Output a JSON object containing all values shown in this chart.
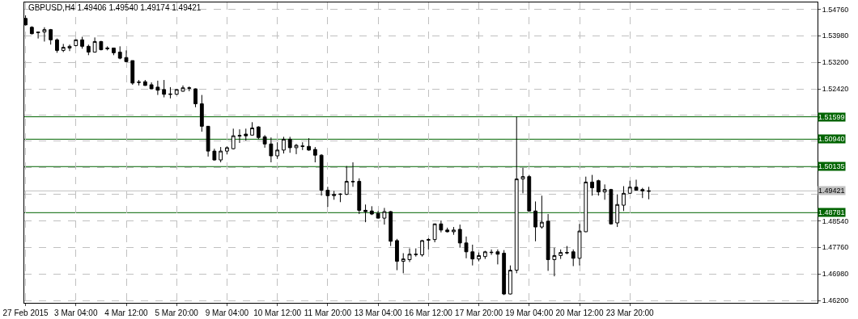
{
  "chart_data": {
    "type": "candlestick",
    "title": "GBPUSD,H4 1.49406 1.49540 1.49174 1.49421",
    "categories": [
      "27 Feb 2015",
      null,
      null,
      null,
      null,
      null,
      null,
      null,
      "3 Mar 04:00",
      null,
      null,
      null,
      null,
      null,
      null,
      null,
      "4 Mar 12:00",
      null,
      null,
      null,
      null,
      null,
      null,
      null,
      "5 Mar 20:00",
      null,
      null,
      null,
      null,
      null,
      null,
      null,
      "9 Mar 04:00",
      null,
      null,
      null,
      null,
      null,
      null,
      null,
      "10 Mar 12:00",
      null,
      null,
      null,
      null,
      null,
      null,
      null,
      "11 Mar 20:00",
      null,
      null,
      null,
      null,
      null,
      null,
      null,
      "13 Mar 04:00",
      null,
      null,
      null,
      null,
      null,
      null,
      null,
      "16 Mar 12:00",
      null,
      null,
      null,
      null,
      null,
      null,
      null,
      "17 Mar 20:00",
      null,
      null,
      null,
      null,
      null,
      null,
      null,
      "19 Mar 04:00",
      null,
      null,
      null,
      null,
      null,
      null,
      null,
      "20 Mar 12:00",
      null,
      null,
      null,
      null,
      null,
      null,
      null,
      "23 Mar 20:00",
      null,
      null,
      null,
      null,
      null,
      null,
      null,
      null,
      null,
      null,
      null,
      null,
      null,
      null,
      null,
      null,
      null,
      null,
      null,
      null,
      null,
      null,
      null,
      null,
      null,
      null,
      null,
      null,
      null
    ],
    "ohlc": [
      [
        1.5449,
        1.5458,
        1.5428,
        1.543
      ],
      [
        1.5423,
        1.5426,
        1.5402,
        1.5404
      ],
      [
        1.5409,
        1.5409,
        1.539,
        1.5407
      ],
      [
        1.5409,
        1.5423,
        1.5381,
        1.5416
      ],
      [
        1.5416,
        1.5418,
        1.5372,
        1.5386
      ],
      [
        1.5386,
        1.539,
        1.5348,
        1.5355
      ],
      [
        1.5355,
        1.5374,
        1.535,
        1.5364
      ],
      [
        1.5362,
        1.5372,
        1.5353,
        1.5367
      ],
      [
        1.5369,
        1.5388,
        1.5367,
        1.5386
      ],
      [
        1.5386,
        1.5395,
        1.536,
        1.5367
      ],
      [
        1.5367,
        1.5372,
        1.5341,
        1.535
      ],
      [
        1.535,
        1.5393,
        1.5349,
        1.5381
      ],
      [
        1.5381,
        1.5383,
        1.5355,
        1.5357
      ],
      [
        1.5362,
        1.5367,
        1.5355,
        1.536
      ],
      [
        1.5362,
        1.5363,
        1.5341,
        1.5348
      ],
      [
        1.535,
        1.5367,
        1.5329,
        1.5332
      ],
      [
        1.5334,
        1.5355,
        1.532,
        1.5322
      ],
      [
        1.5325,
        1.5325,
        1.5254,
        1.5259
      ],
      [
        1.5262,
        1.5268,
        1.5252,
        1.5261
      ],
      [
        1.5263,
        1.5268,
        1.5251,
        1.5252
      ],
      [
        1.5254,
        1.5261,
        1.5241,
        1.5242
      ],
      [
        1.5247,
        1.5266,
        1.5224,
        1.5238
      ],
      [
        1.524,
        1.5268,
        1.5217,
        1.5226
      ],
      [
        1.5227,
        1.5247,
        1.5214,
        1.5226
      ],
      [
        1.5226,
        1.5242,
        1.5224,
        1.524
      ],
      [
        1.5235,
        1.5252,
        1.5234,
        1.5245
      ],
      [
        1.5245,
        1.5249,
        1.5235,
        1.5244
      ],
      [
        1.5242,
        1.5243,
        1.5188,
        1.5198
      ],
      [
        1.5198,
        1.5224,
        1.5116,
        1.5132
      ],
      [
        1.5132,
        1.5132,
        1.5043,
        1.5059
      ],
      [
        1.5059,
        1.5066,
        1.5031,
        1.5033
      ],
      [
        1.5033,
        1.5071,
        1.5026,
        1.5059
      ],
      [
        1.5059,
        1.5073,
        1.505,
        1.5069
      ],
      [
        1.5066,
        1.5125,
        1.5064,
        1.5104
      ],
      [
        1.5103,
        1.5123,
        1.5083,
        1.5105
      ],
      [
        1.5109,
        1.5125,
        1.509,
        1.5104
      ],
      [
        1.5106,
        1.5144,
        1.5105,
        1.5127
      ],
      [
        1.513,
        1.5132,
        1.5094,
        1.5099
      ],
      [
        1.5101,
        1.5106,
        1.5069,
        1.508
      ],
      [
        1.508,
        1.5099,
        1.5026,
        1.5045
      ],
      [
        1.5045,
        1.5085,
        1.5036,
        1.5062
      ],
      [
        1.5062,
        1.5101,
        1.5052,
        1.5094
      ],
      [
        1.5094,
        1.5101,
        1.5054,
        1.5069
      ],
      [
        1.5069,
        1.508,
        1.505,
        1.5076
      ],
      [
        1.5074,
        1.5085,
        1.5062,
        1.5073
      ],
      [
        1.5073,
        1.5097,
        1.506,
        1.5062
      ],
      [
        1.5064,
        1.5071,
        1.5026,
        1.5047
      ],
      [
        1.5047,
        1.505,
        1.4928,
        1.4944
      ],
      [
        1.4944,
        1.4954,
        1.4895,
        1.4928
      ],
      [
        1.4928,
        1.4942,
        1.4916,
        1.4932
      ],
      [
        1.4933,
        1.4935,
        1.4909,
        1.4932
      ],
      [
        1.4932,
        1.5015,
        1.493,
        1.497
      ],
      [
        1.497,
        1.5026,
        1.4954,
        1.4969
      ],
      [
        1.497,
        1.4979,
        1.4874,
        1.4885
      ],
      [
        1.4885,
        1.4902,
        1.485,
        1.4881
      ],
      [
        1.4883,
        1.4897,
        1.4871,
        1.4874
      ],
      [
        1.4876,
        1.4883,
        1.4861,
        1.4862
      ],
      [
        1.4862,
        1.4892,
        1.4843,
        1.4881
      ],
      [
        1.4881,
        1.4883,
        1.478,
        1.4794
      ],
      [
        1.4796,
        1.4801,
        1.4709,
        1.4735
      ],
      [
        1.4735,
        1.4759,
        1.47,
        1.4742
      ],
      [
        1.474,
        1.4773,
        1.4733,
        1.4756
      ],
      [
        1.4756,
        1.4773,
        1.4749,
        1.4755
      ],
      [
        1.4754,
        1.4798,
        1.4749,
        1.4796
      ],
      [
        1.4797,
        1.4803,
        1.477,
        1.4799
      ],
      [
        1.4799,
        1.4846,
        1.4791,
        1.4845
      ],
      [
        1.4845,
        1.4855,
        1.482,
        1.4827
      ],
      [
        1.4827,
        1.4834,
        1.482,
        1.4822
      ],
      [
        1.4822,
        1.4836,
        1.4813,
        1.4827
      ],
      [
        1.4829,
        1.4843,
        1.4775,
        1.4789
      ],
      [
        1.4789,
        1.4808,
        1.4744,
        1.4763
      ],
      [
        1.4763,
        1.4784,
        1.4723,
        1.4742
      ],
      [
        1.4742,
        1.4761,
        1.4735,
        1.4752
      ],
      [
        1.4749,
        1.4766,
        1.4742,
        1.4763
      ],
      [
        1.4762,
        1.477,
        1.4754,
        1.4761
      ],
      [
        1.4763,
        1.477,
        1.4726,
        1.4756
      ],
      [
        1.4759,
        1.4768,
        1.4636,
        1.4639
      ],
      [
        1.4639,
        1.4723,
        1.4638,
        1.4709
      ],
      [
        1.4709,
        1.516,
        1.47,
        1.4977
      ],
      [
        1.4977,
        1.501,
        1.4935,
        1.4984
      ],
      [
        1.4984,
        1.4989,
        1.4882,
        1.4883
      ],
      [
        1.4883,
        1.4911,
        1.4794,
        1.4836
      ],
      [
        1.4836,
        1.4928,
        1.4831,
        1.485
      ],
      [
        1.4853,
        1.4874,
        1.4707,
        1.474
      ],
      [
        1.474,
        1.4775,
        1.4691,
        1.4752
      ],
      [
        1.4752,
        1.477,
        1.4742,
        1.4761
      ],
      [
        1.4761,
        1.478,
        1.4756,
        1.476
      ],
      [
        1.4763,
        1.477,
        1.4721,
        1.4744
      ],
      [
        1.4744,
        1.4845,
        1.4723,
        1.4824
      ],
      [
        1.4822,
        1.4984,
        1.4821,
        1.4968
      ],
      [
        1.4968,
        1.4989,
        1.4928,
        1.4951
      ],
      [
        1.4972,
        1.4975,
        1.4928,
        1.4939
      ],
      [
        1.4939,
        1.4961,
        1.4916,
        1.4946
      ],
      [
        1.4946,
        1.4948,
        1.4843,
        1.4845
      ],
      [
        1.4848,
        1.4932,
        1.4836,
        1.4902
      ],
      [
        1.49,
        1.4956,
        1.4883,
        1.4935
      ],
      [
        1.4935,
        1.4972,
        1.4934,
        1.4953
      ],
      [
        1.4953,
        1.4975,
        1.4943,
        1.4944
      ],
      [
        1.4946,
        1.4951,
        1.4921,
        1.4942
      ],
      [
        1.49406,
        1.4954,
        1.49174,
        1.49421
      ],
      null,
      null,
      null,
      null,
      null,
      null,
      null,
      null,
      null,
      null,
      null,
      null,
      null,
      null,
      null,
      null,
      null,
      null,
      null,
      null,
      null,
      null,
      null,
      null,
      null,
      null
    ],
    "ylim": [
      1.4613,
      1.5496
    ],
    "yticks": [
      {
        "value": 1.462,
        "label": "1.46200"
      },
      {
        "value": 1.4698,
        "label": "1.46980"
      },
      {
        "value": 1.4776,
        "label": "1.47760"
      },
      {
        "value": 1.4854,
        "label": "1.48540"
      },
      {
        "value": 1.4932,
        "label": null
      },
      {
        "value": 1.501,
        "label": null
      },
      {
        "value": 1.5088,
        "label": null
      },
      {
        "value": 1.5166,
        "label": null
      },
      {
        "value": 1.5242,
        "label": "1.52420"
      },
      {
        "value": 1.532,
        "label": "1.53200"
      },
      {
        "value": 1.5398,
        "label": "1.53980"
      },
      {
        "value": 1.5476,
        "label": "1.54760"
      }
    ],
    "grid": true,
    "ref_lines": [
      {
        "axis": "y",
        "value": 1.51599,
        "label": "1.51599",
        "color": "#006400"
      },
      {
        "axis": "y",
        "value": 1.5094,
        "label": "1.50940",
        "color": "#006400"
      },
      {
        "axis": "y",
        "value": 1.50135,
        "label": "1.50135",
        "color": "#006400"
      },
      {
        "axis": "y",
        "value": 1.49421,
        "label": "1.49421",
        "color": "#c0c0c0"
      },
      {
        "axis": "y",
        "value": 1.48781,
        "label": "1.48781",
        "color": "#006400"
      }
    ]
  }
}
